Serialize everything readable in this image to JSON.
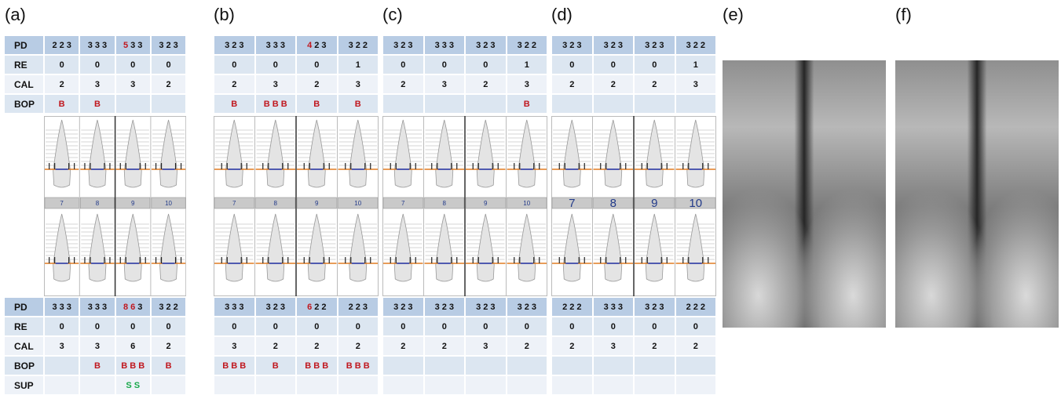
{
  "panels": [
    {
      "label": "(a)",
      "row_labels_top": [
        "PD",
        "RE",
        "CAL",
        "BOP"
      ],
      "row_labels_bottom": [
        "PD",
        "RE",
        "CAL",
        "BOP",
        "SUP"
      ],
      "top": {
        "pd": [
          [
            2,
            2,
            3
          ],
          [
            3,
            3,
            3
          ],
          [
            5,
            3,
            3
          ],
          [
            3,
            2,
            3
          ]
        ],
        "re": [
          0,
          0,
          0,
          0
        ],
        "cal": [
          2,
          3,
          3,
          2
        ],
        "bop": [
          "B",
          "B",
          null,
          null
        ]
      },
      "teeth": [
        7,
        8,
        9,
        10
      ],
      "bottom": {
        "pd": [
          [
            3,
            3,
            3
          ],
          [
            3,
            3,
            3
          ],
          [
            8,
            6,
            3
          ],
          [
            3,
            2,
            2
          ]
        ],
        "re": [
          0,
          0,
          0,
          0
        ],
        "cal": [
          3,
          3,
          6,
          2
        ],
        "bop": [
          null,
          "B",
          "B B B",
          "B"
        ],
        "sup": [
          null,
          null,
          "S S",
          null
        ]
      }
    },
    {
      "label": "(b)",
      "top": {
        "pd": [
          [
            3,
            2,
            3
          ],
          [
            3,
            3,
            3
          ],
          [
            4,
            2,
            3
          ],
          [
            3,
            2,
            2
          ]
        ],
        "re": [
          0,
          0,
          0,
          1
        ],
        "cal": [
          2,
          3,
          2,
          3
        ],
        "bop": [
          "B",
          "B B B",
          "B",
          "B"
        ]
      },
      "teeth": [
        7,
        8,
        9,
        10
      ],
      "bottom": {
        "pd": [
          [
            3,
            3,
            3
          ],
          [
            3,
            2,
            3
          ],
          [
            6,
            2,
            2
          ],
          [
            2,
            2,
            3
          ]
        ],
        "re": [
          0,
          0,
          0,
          0
        ],
        "cal": [
          3,
          2,
          2,
          2
        ],
        "bop": [
          "B B B",
          "B",
          "B B B",
          "B B B"
        ],
        "sup": [
          null,
          null,
          null,
          null
        ]
      }
    },
    {
      "label": "(c)",
      "top": {
        "pd": [
          [
            3,
            2,
            3
          ],
          [
            3,
            3,
            3
          ],
          [
            3,
            2,
            3
          ],
          [
            3,
            2,
            2
          ]
        ],
        "re": [
          0,
          0,
          0,
          1
        ],
        "cal": [
          2,
          3,
          2,
          3
        ],
        "bop": [
          null,
          null,
          null,
          "B"
        ]
      },
      "teeth": [
        7,
        8,
        9,
        10
      ],
      "bottom": {
        "pd": [
          [
            3,
            2,
            3
          ],
          [
            3,
            2,
            3
          ],
          [
            3,
            2,
            3
          ],
          [
            3,
            2,
            3
          ]
        ],
        "re": [
          0,
          0,
          0,
          0
        ],
        "cal": [
          2,
          2,
          3,
          2
        ],
        "bop": [
          null,
          null,
          null,
          null
        ],
        "sup": [
          null,
          null,
          null,
          null
        ]
      }
    },
    {
      "label": "(d)",
      "top": {
        "pd": [
          [
            3,
            2,
            3
          ],
          [
            3,
            2,
            3
          ],
          [
            3,
            2,
            3
          ],
          [
            3,
            2,
            2
          ]
        ],
        "re": [
          0,
          0,
          0,
          1
        ],
        "cal": [
          2,
          2,
          2,
          3
        ],
        "bop": [
          null,
          null,
          null,
          null
        ]
      },
      "teeth": [
        7,
        8,
        9,
        10
      ],
      "bottom": {
        "pd": [
          [
            2,
            2,
            2
          ],
          [
            3,
            3,
            3
          ],
          [
            3,
            2,
            3
          ],
          [
            2,
            2,
            2
          ]
        ],
        "re": [
          0,
          0,
          0,
          0
        ],
        "cal": [
          2,
          3,
          2,
          2
        ],
        "bop": [
          null,
          null,
          null,
          null
        ],
        "sup": [
          null,
          null,
          null,
          null
        ]
      }
    }
  ],
  "images": [
    {
      "label": "(e)"
    },
    {
      "label": "(f)"
    }
  ]
}
